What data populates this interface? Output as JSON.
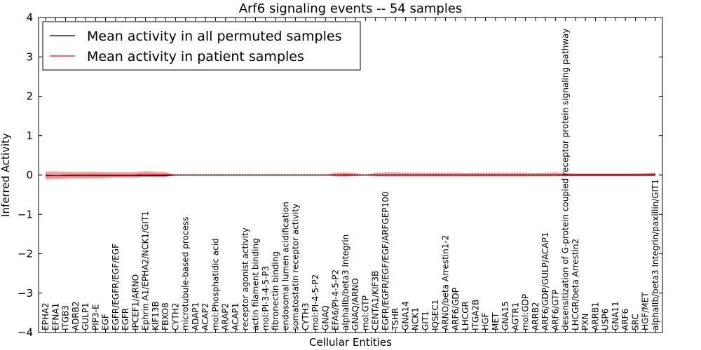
{
  "chart_data": {
    "type": "line",
    "title": "Arf6 signaling events -- 54 samples",
    "xlabel": "Cellular Entities",
    "ylabel": "Inferred Activity",
    "ylim": [
      -4,
      4
    ],
    "yticks": [
      -4,
      -3,
      -2,
      -1,
      0,
      1,
      2,
      3,
      4
    ],
    "grid": false,
    "legend_position": "top-left",
    "categories": [
      "EPHA2",
      "EFNA1",
      "ITGB3",
      "ADRB2",
      "GULP1",
      "PIP3-E",
      "EGF",
      "EGFR/EGFR/EGF/EGF",
      "EGFR",
      "IPCEF1/ARNO",
      "Ephrin A1/EPHA2/NCK1/GIT1",
      "KIF13B",
      "FBXO8",
      "CYTH2",
      "microtubule-based process",
      "ADAP1",
      "ACAP2",
      "mol:Phosphatidic acid",
      "ARAP2",
      "ACAP1",
      "receptor agonist activity",
      "actin filament binding",
      "mol:PI-3-4-5-P3",
      "fibronectin binding",
      "endosomal lumen acidification",
      "somatostatin receptor activity",
      "CYTH3",
      "mol:PI-4-5-P2",
      "GNAQ",
      "EFA6/PI-4-5-P2",
      "alphaIIb/beta3 Integrin",
      "GNAQ/ARNO",
      "mol:GTP",
      "CENTA1/KIF3B",
      "EGFR/EGFR/EGF/EGF/ARFGEP100",
      "TSHR",
      "GNA14",
      "NCK1",
      "GIT1",
      "IQSEC1",
      "ARNO/beta Arrestin1-2",
      "ARF6/GDP",
      "LHCGR",
      "ITGA2B",
      "HGF",
      "MET",
      "GNA15",
      "AGTR1",
      "mol:GDP",
      "ARRB2",
      "ARF6/GDP/GULP/ACAP1",
      "ARF6/GTP",
      "desensitization of G-protein coupled receptor protein signaling pathway",
      "LHCGR/beta Arrestin2",
      "PXN",
      "ARRB1",
      "USP6",
      "GNA11",
      "ARF6",
      "SRC",
      "HGF/MET",
      "alphaIIb/beta3 Integrin/paxillin/GIT1"
    ],
    "series": [
      {
        "name": "Mean activity in all permuted samples",
        "color": "#000000",
        "values": [
          -0.01,
          -0.01,
          -0.01,
          -0.01,
          -0.01,
          -0.01,
          -0.01,
          -0.01,
          -0.01,
          -0.01,
          -0.01,
          -0.01,
          -0.01,
          0,
          0,
          0,
          0,
          0,
          0,
          0,
          0,
          0,
          0,
          0,
          0,
          0,
          0,
          0,
          0,
          0,
          0,
          0,
          0,
          0,
          0,
          0,
          0,
          0,
          0,
          0,
          0,
          0,
          0,
          0,
          0,
          0,
          0,
          0,
          0,
          0,
          0,
          0,
          0,
          0,
          0,
          0,
          0,
          0,
          0,
          0,
          0,
          0
        ],
        "band_color": "#b0b0d0",
        "band_lower": [
          -0.07,
          -0.07,
          -0.07,
          -0.06,
          -0.06,
          -0.06,
          -0.06,
          -0.05,
          -0.05,
          -0.05,
          -0.05,
          -0.05,
          -0.05,
          0,
          0,
          0,
          0,
          0,
          0,
          0,
          0,
          0,
          0,
          0,
          0,
          0,
          0,
          0,
          0,
          0,
          0,
          0,
          0,
          -0.04,
          -0.04,
          -0.04,
          -0.04,
          -0.04,
          -0.04,
          -0.04,
          -0.04,
          -0.04,
          -0.04,
          -0.04,
          -0.04,
          -0.04,
          -0.04,
          -0.04,
          -0.04,
          -0.04,
          -0.04,
          -0.04,
          -0.04,
          -0.04,
          -0.04,
          -0.04,
          -0.04,
          -0.04,
          -0.04,
          -0.04,
          -0.04,
          -0.04
        ],
        "band_upper": [
          0.05,
          0.05,
          0.05,
          0.05,
          0.05,
          0.05,
          0.05,
          0.04,
          0.04,
          0.04,
          0.04,
          0.04,
          0.04,
          0,
          0,
          0,
          0,
          0,
          0,
          0,
          0,
          0,
          0,
          0,
          0,
          0,
          0,
          0,
          0,
          0,
          0,
          0,
          0,
          0.03,
          0.03,
          0.03,
          0.03,
          0.03,
          0.03,
          0.03,
          0.03,
          0.03,
          0.03,
          0.03,
          0.03,
          0.03,
          0.03,
          0.03,
          0.03,
          0.03,
          0.03,
          0.03,
          0.03,
          0.03,
          0.03,
          0.03,
          0.03,
          0.03,
          0.03,
          0.03,
          0.03,
          0.03
        ]
      },
      {
        "name": "Mean activity in patient samples",
        "color": "#ff0000",
        "values": [
          0,
          -0.01,
          0,
          0,
          0,
          0,
          0,
          0,
          0,
          0,
          0.02,
          0.01,
          0.01,
          0,
          0,
          0,
          0,
          0,
          0,
          0,
          0,
          0,
          0,
          0,
          0,
          0,
          0,
          0,
          0,
          0,
          0.01,
          0,
          0,
          0,
          0,
          0,
          0,
          0,
          0,
          0,
          0,
          0,
          0,
          0,
          0,
          0,
          0,
          0,
          0,
          0,
          0,
          0,
          0.01,
          0.01,
          0.01,
          0.01,
          0.01,
          0.01,
          0.01,
          0.01,
          0.01,
          0.02
        ],
        "band_color": "#f08080",
        "band_lower": [
          -0.12,
          -0.11,
          -0.1,
          -0.09,
          -0.09,
          -0.09,
          -0.08,
          -0.07,
          -0.07,
          -0.07,
          -0.05,
          -0.06,
          -0.06,
          0,
          0,
          0,
          0,
          0,
          0,
          0,
          0,
          0,
          0,
          0,
          0,
          0,
          0,
          0,
          0,
          -0.04,
          -0.05,
          -0.03,
          0,
          -0.03,
          -0.04,
          -0.04,
          -0.04,
          -0.04,
          -0.04,
          -0.04,
          -0.04,
          -0.04,
          -0.04,
          -0.04,
          -0.04,
          -0.04,
          -0.04,
          -0.04,
          -0.04,
          -0.03,
          -0.03,
          -0.03,
          -0.03,
          -0.02,
          -0.02,
          -0.02,
          -0.02,
          -0.02,
          -0.02,
          -0.02,
          -0.01,
          -0.01
        ],
        "band_upper": [
          0.09,
          0.09,
          0.08,
          0.08,
          0.08,
          0.08,
          0.07,
          0.07,
          0.07,
          0.07,
          0.1,
          0.08,
          0.08,
          0,
          0,
          0,
          0,
          0,
          0,
          0,
          0,
          0,
          0,
          0,
          0,
          0,
          0,
          0,
          0,
          0.06,
          0.07,
          0.05,
          0,
          0.06,
          0.07,
          0.07,
          0.06,
          0.06,
          0.06,
          0.06,
          0.06,
          0.06,
          0.05,
          0.06,
          0.06,
          0.06,
          0.06,
          0.06,
          0.06,
          0.05,
          0.06,
          0.07,
          0.05,
          0.04,
          0.04,
          0.04,
          0.04,
          0.04,
          0.04,
          0.04,
          0.05,
          0.06
        ]
      }
    ]
  }
}
